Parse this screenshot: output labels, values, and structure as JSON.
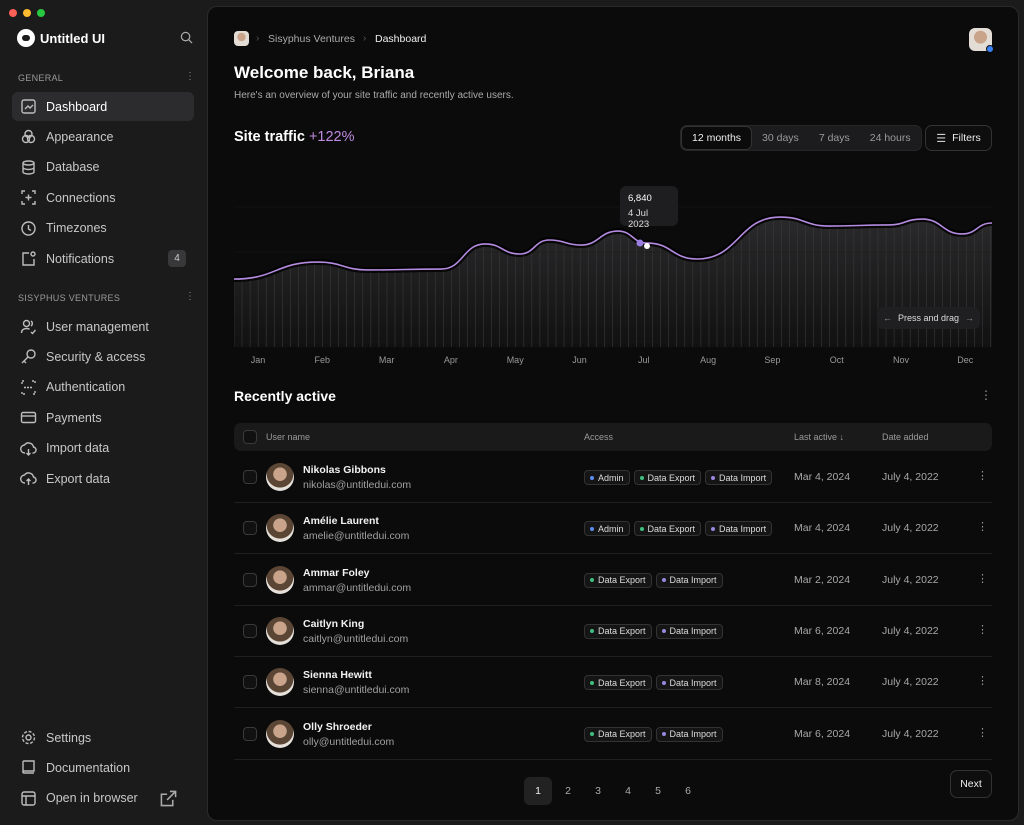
{
  "app": {
    "name": "Untitled UI"
  },
  "sidebar": {
    "general_label": "GENERAL",
    "general_items": [
      {
        "label": "Dashboard",
        "icon": "chart-icon",
        "active": true
      },
      {
        "label": "Appearance",
        "icon": "circles-icon"
      },
      {
        "label": "Database",
        "icon": "database-icon"
      },
      {
        "label": "Connections",
        "icon": "scan-plus-icon"
      },
      {
        "label": "Timezones",
        "icon": "clock-icon"
      },
      {
        "label": "Notifications",
        "icon": "notification-icon",
        "badge": "4"
      }
    ],
    "org_label": "SISYPHUS VENTURES",
    "org_items": [
      {
        "label": "User management",
        "icon": "users-icon"
      },
      {
        "label": "Security & access",
        "icon": "key-icon"
      },
      {
        "label": "Authentication",
        "icon": "scan-icon"
      },
      {
        "label": "Payments",
        "icon": "credit-card-icon"
      },
      {
        "label": "Import data",
        "icon": "cloud-download-icon"
      },
      {
        "label": "Export data",
        "icon": "cloud-upload-icon"
      }
    ],
    "footer_items": [
      {
        "label": "Settings",
        "icon": "gear-icon"
      },
      {
        "label": "Documentation",
        "icon": "book-icon"
      },
      {
        "label": "Open in browser",
        "icon": "browser-icon"
      }
    ]
  },
  "header": {
    "breadcrumb": [
      "Sisyphus Ventures",
      "Dashboard"
    ],
    "title": "Welcome back, Briana",
    "subtitle": "Here's an overview of your site traffic and recently active users."
  },
  "traffic": {
    "title": "Site traffic",
    "change": "+122%",
    "accent": "#b57edc",
    "tabs": [
      "12 months",
      "30 days",
      "7 days",
      "24 hours"
    ],
    "active_tab": "12 months",
    "filters": "Filters",
    "tooltip_value": "6,840",
    "tooltip_date": "4 Jul 2023",
    "drag_hint": "Press and drag"
  },
  "chart_data": {
    "type": "area",
    "categories": [
      "Jan",
      "Feb",
      "Mar",
      "Apr",
      "May",
      "Jun",
      "Jul",
      "Aug",
      "Sep",
      "Oct",
      "Nov",
      "Dec"
    ],
    "series": [
      {
        "points": [
          [
            -0.36,
            4470
          ],
          [
            0.93,
            5590
          ],
          [
            1.71,
            5070
          ],
          [
            2.85,
            5130
          ],
          [
            3.53,
            6780
          ],
          [
            4.07,
            6120
          ],
          [
            4.53,
            7040
          ],
          [
            5.02,
            6710
          ],
          [
            5.6,
            7630
          ],
          [
            6.05,
            6840
          ],
          [
            6.83,
            5790
          ],
          [
            8.12,
            8550
          ],
          [
            8.88,
            7960
          ],
          [
            9.8,
            8030
          ],
          [
            10.33,
            8420
          ],
          [
            10.95,
            7440
          ],
          [
            11.4,
            8160
          ]
        ]
      }
    ],
    "highlight": {
      "x": 6.05,
      "y": 6840,
      "label": "4 Jul 2023"
    },
    "grid": "vertical",
    "line_color": "#b48be0"
  },
  "recent": {
    "title": "Recently active",
    "columns": [
      "User name",
      "Access",
      "Last active",
      "Date added"
    ],
    "rows": [
      {
        "name": "Nikolas Gibbons",
        "email": "nikolas@untitledui.com",
        "access": [
          "Admin",
          "Data Export",
          "Data Import"
        ],
        "last": "Mar 4, 2024",
        "added": "July 4, 2022"
      },
      {
        "name": "Amélie Laurent",
        "email": "amelie@untitledui.com",
        "access": [
          "Admin",
          "Data Export",
          "Data Import"
        ],
        "last": "Mar 4, 2024",
        "added": "July 4, 2022"
      },
      {
        "name": "Ammar Foley",
        "email": "ammar@untitledui.com",
        "access": [
          "Data Export",
          "Data Import"
        ],
        "last": "Mar 2, 2024",
        "added": "July 4, 2022"
      },
      {
        "name": "Caitlyn King",
        "email": "caitlyn@untitledui.com",
        "access": [
          "Data Export",
          "Data Import"
        ],
        "last": "Mar 6, 2024",
        "added": "July 4, 2022"
      },
      {
        "name": "Sienna Hewitt",
        "email": "sienna@untitledui.com",
        "access": [
          "Data Export",
          "Data Import"
        ],
        "last": "Mar 8, 2024",
        "added": "July 4, 2022"
      },
      {
        "name": "Olly Shroeder",
        "email": "olly@untitledui.com",
        "access": [
          "Data Export",
          "Data Import"
        ],
        "last": "Mar 6, 2024",
        "added": "July 4, 2022"
      }
    ],
    "tag_colors": {
      "Admin": "#5b8def",
      "Data Export": "#3fbf7f",
      "Data Import": "#9b87e0"
    }
  },
  "pagination": {
    "pages": [
      "1",
      "2",
      "3",
      "4",
      "5",
      "6"
    ],
    "current": "1",
    "next": "Next"
  }
}
